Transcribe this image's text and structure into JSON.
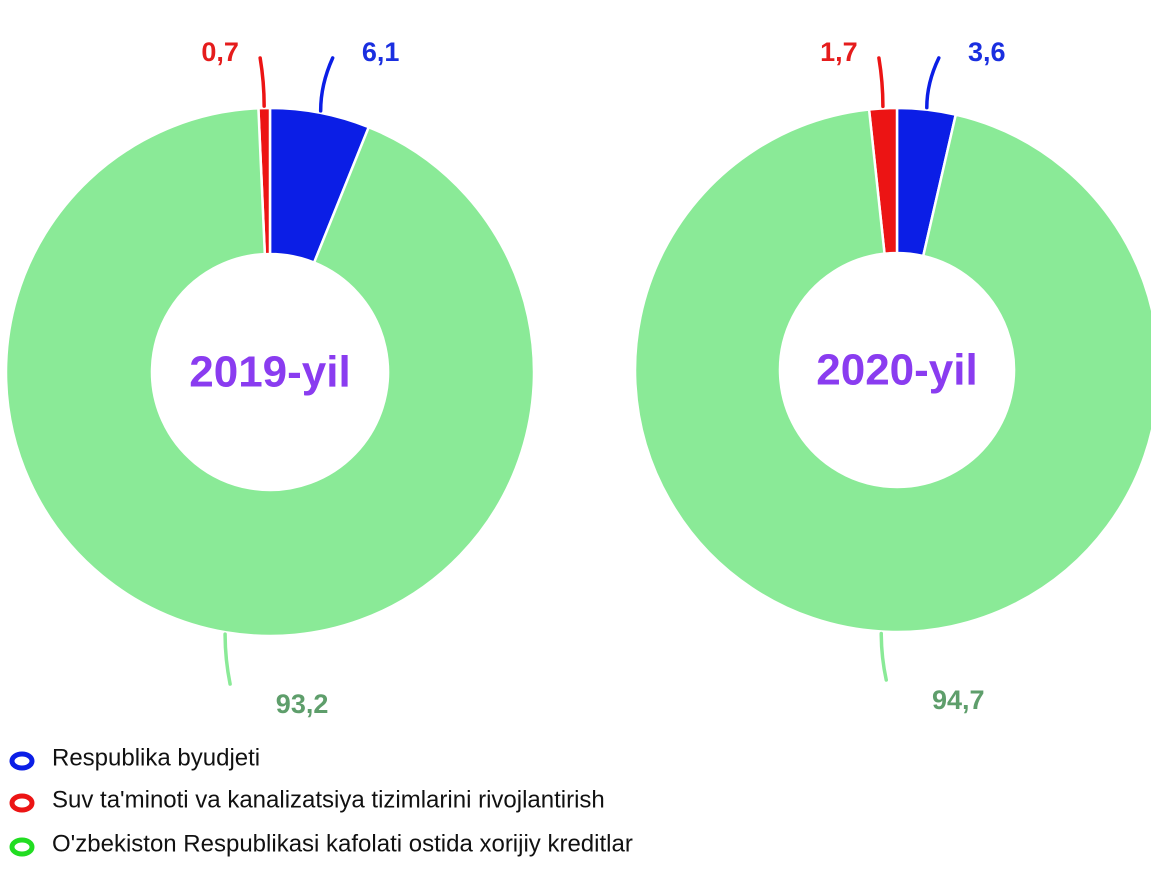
{
  "chart_data": {
    "type": "donut",
    "categories": [
      "Respublika byudjeti",
      "Suv ta'minoti va kanalizatsiya tizimlarini rivojlantirish",
      "O'zbekiston Respublikasi kafolati ostida xorijiy kreditlar"
    ],
    "colors": [
      "#0b1ee6",
      "#ec1414",
      "#8aea97"
    ],
    "label_colors": [
      "#1a2fe0",
      "#e51c1c",
      "#5e9e6b"
    ],
    "legend_colors": [
      "#0b1ee6",
      "#ec1414",
      "#22dd22"
    ],
    "series": [
      {
        "name": "2019-yil",
        "values": [
          6.1,
          0.7,
          93.2
        ],
        "value_labels": [
          "6,1",
          "0,7",
          "93,2"
        ]
      },
      {
        "name": "2020-yil",
        "values": [
          3.6,
          1.7,
          94.7
        ],
        "value_labels": [
          "3,6",
          "1,7",
          "94,7"
        ]
      }
    ]
  }
}
